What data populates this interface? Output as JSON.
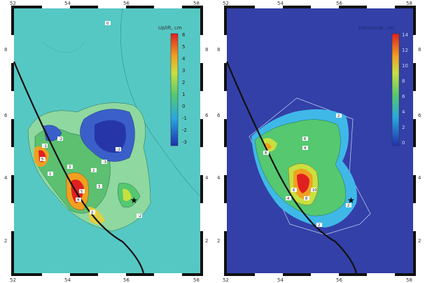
{
  "left_panel": {
    "colorbar_title": "Uplift, cm",
    "colorbar_ticks": [
      "6",
      "5",
      "4",
      "3",
      "2",
      "1",
      "0",
      "-1",
      "-2",
      "-3"
    ],
    "x_ticks": [
      "52",
      "54",
      "56",
      "58"
    ],
    "y_ticks": [
      "8",
      "6",
      "4",
      "2"
    ],
    "contour_labels": [
      "5",
      "3",
      "4",
      "1",
      "2",
      "-2",
      "-3",
      "-2",
      "-1",
      "-2",
      "5",
      "2",
      "3",
      "0"
    ]
  },
  "right_panel": {
    "colorbar_title": "Horizontal, cm",
    "colorbar_ticks": [
      "14",
      "12",
      "10",
      "8",
      "6",
      "4",
      "2",
      "0"
    ],
    "x_ticks": [
      "52",
      "54",
      "56",
      "58"
    ],
    "y_ticks": [
      "8",
      "6",
      "4",
      "2"
    ],
    "contour_labels": [
      "2",
      "8",
      "4",
      "6",
      "10",
      "8",
      "6",
      "4",
      "2",
      "2"
    ]
  },
  "colors": {
    "left_background": "#56c8c4",
    "right_background": "#3340a8",
    "fault_line": "#111111",
    "frame_black": "#111111"
  }
}
